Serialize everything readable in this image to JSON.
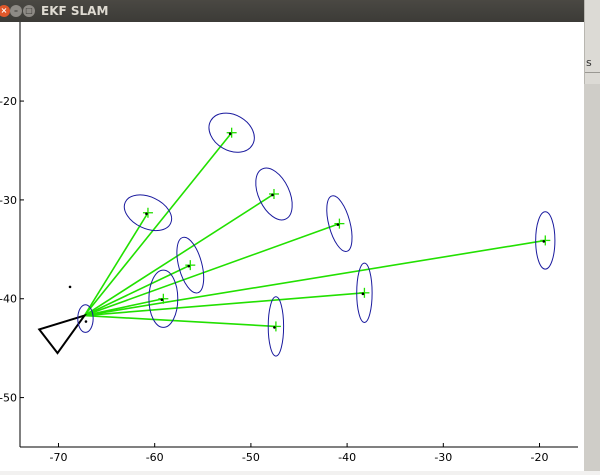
{
  "window": {
    "title": "EKF SLAM",
    "close_glyph": "×",
    "min_glyph": "–",
    "max_glyph": "□",
    "side_panel_text": "s"
  },
  "chart_data": {
    "type": "scatter",
    "title": "EKF SLAM",
    "xlim": [
      -74,
      -16
    ],
    "ylim": [
      -55,
      -12
    ],
    "x_ticks": [
      -70,
      -60,
      -50,
      -40,
      -30,
      -20
    ],
    "y_ticks": [
      -20,
      -30,
      -40,
      -50
    ],
    "robot": {
      "pose": {
        "x": -67.3,
        "y": -41.7
      },
      "triangle": [
        [
          -67.3,
          -41.7
        ],
        [
          -72,
          -43.1
        ],
        [
          -70.1,
          -45.5
        ]
      ],
      "uncertainty": {
        "rx": 0.8,
        "ry": 1.4
      },
      "extra_point": {
        "x": -68.8,
        "y": -38.8
      }
    },
    "landmarks": [
      {
        "x": -52.0,
        "y": -23.2,
        "rx": 2.5,
        "ry": 1.8,
        "angle": 30
      },
      {
        "x": -60.7,
        "y": -31.3,
        "rx": 2.6,
        "ry": 1.6,
        "angle": 25
      },
      {
        "x": -47.6,
        "y": -29.4,
        "rx": 1.6,
        "ry": 2.8,
        "angle": -25
      },
      {
        "x": -40.8,
        "y": -32.4,
        "rx": 1.1,
        "ry": 2.9,
        "angle": -15
      },
      {
        "x": -56.3,
        "y": -36.6,
        "rx": 1.2,
        "ry": 2.9,
        "angle": -15
      },
      {
        "x": -59.1,
        "y": -40.0,
        "rx": 1.5,
        "ry": 2.9,
        "angle": 0
      },
      {
        "x": -47.4,
        "y": -42.8,
        "rx": 0.8,
        "ry": 3.0,
        "angle": 0
      },
      {
        "x": -38.2,
        "y": -39.4,
        "rx": 0.8,
        "ry": 3.0,
        "angle": 0
      },
      {
        "x": -19.4,
        "y": -34.1,
        "rx": 1.0,
        "ry": 2.9,
        "angle": 0
      }
    ],
    "colors": {
      "ray": "#22e000",
      "marker": "#22e000",
      "ellipse": "#1a1a9e",
      "estimate": "#000000",
      "robot": "#000000"
    }
  }
}
